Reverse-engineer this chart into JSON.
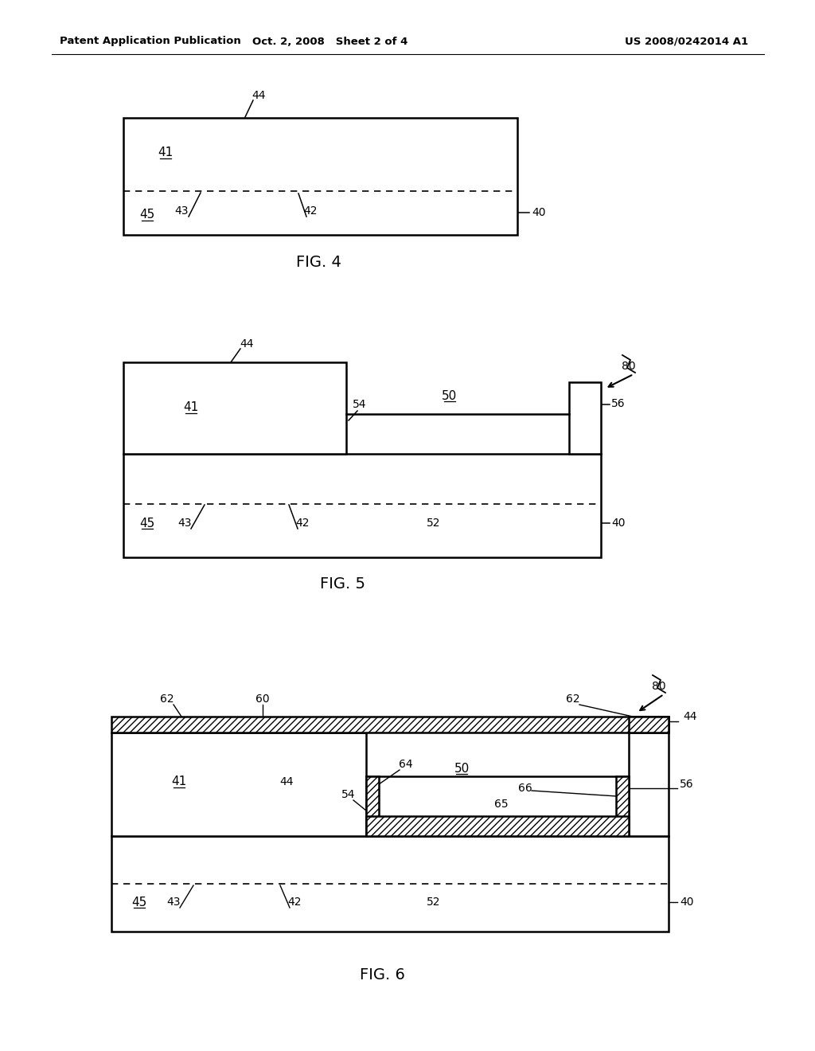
{
  "header_left": "Patent Application Publication",
  "header_mid": "Oct. 2, 2008   Sheet 2 of 4",
  "header_right": "US 2008/0242014 A1",
  "background_color": "#ffffff",
  "line_color": "#000000",
  "fig4_caption": "FIG. 4",
  "fig5_caption": "FIG. 5",
  "fig6_caption": "FIG. 6"
}
